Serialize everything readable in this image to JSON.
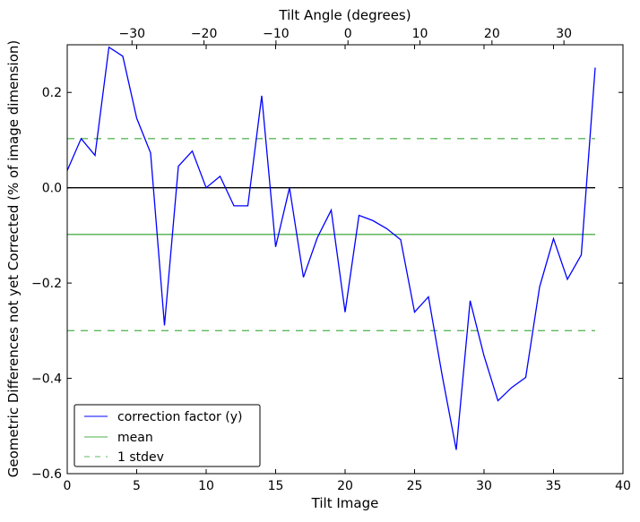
{
  "chart_data": {
    "type": "line",
    "title": "",
    "xlabel": "Tilt Image",
    "ylabel": "Geometric Differences not yet Corrected (% of image dimension)",
    "top_xlabel": "Tilt Angle (degrees)",
    "xlim": [
      0,
      40
    ],
    "ylim": [
      -0.6,
      0.3
    ],
    "top_xlim": [
      -39.0,
      38.2
    ],
    "x_ticks": [
      0,
      5,
      10,
      15,
      20,
      25,
      30,
      35,
      40
    ],
    "y_ticks": [
      -0.6,
      -0.4,
      -0.2,
      0.0,
      0.2
    ],
    "y_tick_labels": [
      "−0.6",
      "−0.4",
      "−0.2",
      "0.0",
      "0.2"
    ],
    "top_ticks": [
      -30,
      -20,
      -10,
      0,
      10,
      20,
      30
    ],
    "top_tick_labels": [
      "−30",
      "−20",
      "−10",
      "0",
      "10",
      "20",
      "30"
    ],
    "grid": false,
    "legend_position": "lower-left",
    "series": [
      {
        "name": "correction factor (y)",
        "color": "#0000ff",
        "style": "solid",
        "x": [
          0,
          1,
          2,
          3,
          4,
          5,
          6,
          7,
          8,
          9,
          10,
          11,
          12,
          13,
          14,
          15,
          16,
          17,
          18,
          19,
          20,
          21,
          22,
          23,
          24,
          25,
          26,
          27,
          28,
          29,
          30,
          31,
          32,
          33,
          34,
          35,
          36,
          37,
          38
        ],
        "values": [
          0.036,
          0.103,
          0.068,
          0.295,
          0.276,
          0.146,
          0.073,
          -0.289,
          0.045,
          0.077,
          0.0,
          0.024,
          -0.038,
          -0.038,
          0.193,
          -0.124,
          0.0,
          -0.188,
          -0.105,
          -0.047,
          -0.261,
          -0.058,
          -0.069,
          -0.086,
          -0.109,
          -0.261,
          -0.229,
          -0.396,
          -0.55,
          -0.237,
          -0.353,
          -0.447,
          -0.419,
          -0.398,
          -0.208,
          -0.107,
          -0.192,
          -0.141,
          0.252
        ]
      },
      {
        "name": "mean",
        "color": "#4daf4a",
        "style": "solid",
        "x": [
          0,
          38
        ],
        "values": [
          -0.098,
          -0.098
        ]
      },
      {
        "name": "1 stdev",
        "color": "#5cb85c",
        "style": "dashed",
        "x": [
          0,
          38
        ],
        "values": [
          0.103,
          0.103
        ]
      },
      {
        "name": "1 stdev (lower)",
        "legend": false,
        "color": "#5cb85c",
        "style": "dashed",
        "x": [
          0,
          38
        ],
        "values": [
          -0.3,
          -0.3
        ]
      },
      {
        "name": "zero",
        "legend": false,
        "color": "#000000",
        "style": "solid",
        "x": [
          0,
          38
        ],
        "values": [
          0,
          0
        ]
      }
    ]
  }
}
